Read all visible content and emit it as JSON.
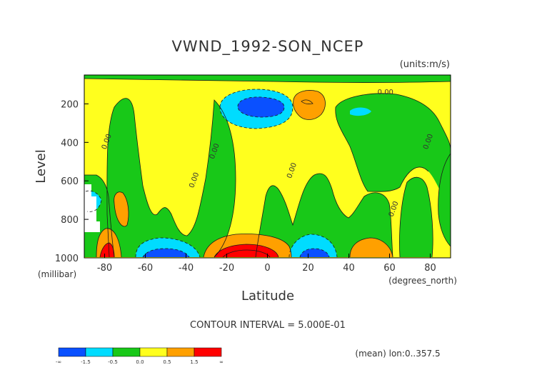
{
  "chart_data": {
    "type": "contour",
    "title": "VWND_1992-SON_NCEP",
    "units_label": "(units:m/s)",
    "ylabel": "Level",
    "ylabel_units": "(millibar)",
    "xlabel": "Latitude",
    "xlabel_units": "(degrees_north)",
    "xlim": [
      -90,
      90
    ],
    "ylim": [
      1000,
      50
    ],
    "y_scale": "linear (inverted, pressure)",
    "x_ticks": [
      -80,
      -60,
      -40,
      -20,
      0,
      20,
      40,
      60,
      80
    ],
    "y_ticks": [
      200,
      400,
      600,
      800,
      1000
    ],
    "contour_interval_text": "CONTOUR INTERVAL = 5.000E-01",
    "footer_text": "(mean) lon:0..357.5",
    "colorbar": {
      "labels": [
        "-∞",
        "-1.5",
        "-0.5",
        "0.0",
        "0.5",
        "1.5",
        "∞"
      ],
      "colors": [
        "#0a50ff",
        "#00dcff",
        "#18c818",
        "#ffff1e",
        "#ffa000",
        "#ff0000"
      ]
    },
    "contour_labels": [
      {
        "text": "0.00",
        "lat": 58,
        "lev": 150
      },
      {
        "text": "0.00",
        "lat": -78,
        "lev": 400
      },
      {
        "text": "0.00",
        "lat": -25,
        "lev": 450
      },
      {
        "text": "0.00",
        "lat": -35,
        "lev": 600
      },
      {
        "text": "0.00",
        "lat": 13,
        "lev": 550
      },
      {
        "text": "0.00",
        "lat": 63,
        "lev": 750
      },
      {
        "text": "0.00",
        "lat": 80,
        "lev": 400
      }
    ],
    "regions": [
      {
        "level": "neg_strong",
        "desc": "core min near 5S/180mb",
        "lat": -7,
        "lev": 180
      },
      {
        "level": "pos_strong",
        "desc": "max near 10S/950mb",
        "lat": -10,
        "lev": 950
      },
      {
        "level": "neg_strong",
        "desc": "min near 57S/980mb",
        "lat": -57,
        "lev": 980
      },
      {
        "level": "neg_strong",
        "desc": "min near 22N/980mb",
        "lat": 22,
        "lev": 980
      },
      {
        "level": "pos_medium",
        "desc": "max near 20N/150mb",
        "lat": 20,
        "lev": 150
      },
      {
        "level": "pos_medium",
        "desc": "max near 50N/950mb",
        "lat": 50,
        "lev": 950
      },
      {
        "level": "pos_strong",
        "desc": "max near 85S/960mb",
        "lat": -85,
        "lev": 960
      }
    ]
  }
}
